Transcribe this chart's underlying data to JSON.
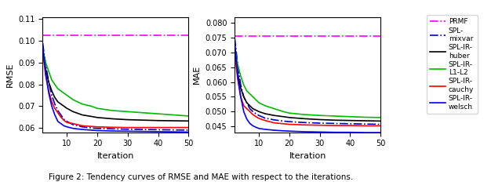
{
  "title": "Figure 2: Tendency curves of RMSE and MAE with respect to the iterations.",
  "iterations": [
    2,
    3,
    4,
    5,
    6,
    7,
    8,
    9,
    10,
    12,
    15,
    18,
    20,
    25,
    30,
    35,
    40,
    45,
    50
  ],
  "rmse_ylim": [
    0.058,
    0.111
  ],
  "rmse_yticks": [
    0.06,
    0.07,
    0.08,
    0.09,
    0.1,
    0.11
  ],
  "mae_ylim": [
    0.043,
    0.082
  ],
  "mae_yticks": [
    0.045,
    0.05,
    0.055,
    0.06,
    0.065,
    0.07,
    0.075,
    0.08
  ],
  "xlim": [
    2,
    50
  ],
  "xticks": [
    10,
    20,
    30,
    40,
    50
  ],
  "legend_labels": [
    "PRMF",
    "SPL-\nmixvar",
    "SPL-IR-\nhuber",
    "SPL-IR-\nL1-L2",
    "SPL-IR-\ncauchy",
    "SPL-IR-\nwelsch"
  ],
  "colors": {
    "PRMF": "#ff00ff",
    "SPL-mixvar": "#0000cd",
    "SPL-IR-huber": "#000000",
    "SPL-IR-L1-L2": "#00bb00",
    "SPL-IR-cauchy": "#ff0000",
    "SPL-IR-welsch": "#0000ff"
  },
  "linestyles": {
    "PRMF": "-.",
    "SPL-mixvar": "-.",
    "SPL-IR-huber": "-",
    "SPL-IR-L1-L2": "-",
    "SPL-IR-cauchy": "-",
    "SPL-IR-welsch": "-"
  },
  "rmse": {
    "PRMF": [
      0.1025,
      0.1025,
      0.1025,
      0.1025,
      0.1025,
      0.1025,
      0.1025,
      0.1025,
      0.1025,
      0.1025,
      0.1025,
      0.1025,
      0.1025,
      0.1025,
      0.1025,
      0.1025,
      0.1025,
      0.1025,
      0.1025
    ],
    "SPL-mixvar": [
      0.099,
      0.089,
      0.081,
      0.075,
      0.071,
      0.068,
      0.066,
      0.064,
      0.063,
      0.0615,
      0.0605,
      0.06,
      0.0598,
      0.0596,
      0.0594,
      0.0593,
      0.0592,
      0.0591,
      0.059
    ],
    "SPL-IR-huber": [
      0.096,
      0.087,
      0.081,
      0.077,
      0.074,
      0.072,
      0.071,
      0.07,
      0.069,
      0.0675,
      0.066,
      0.0653,
      0.0648,
      0.0642,
      0.0638,
      0.0636,
      0.0634,
      0.0633,
      0.0632
    ],
    "SPL-IR-L1-L2": [
      0.096,
      0.09,
      0.086,
      0.082,
      0.08,
      0.078,
      0.077,
      0.076,
      0.075,
      0.073,
      0.071,
      0.07,
      0.069,
      0.068,
      0.0675,
      0.067,
      0.0665,
      0.066,
      0.0655
    ],
    "SPL-IR-cauchy": [
      0.095,
      0.084,
      0.077,
      0.072,
      0.069,
      0.067,
      0.065,
      0.0635,
      0.0625,
      0.062,
      0.061,
      0.0607,
      0.0605,
      0.0603,
      0.0602,
      0.0602,
      0.0602,
      0.0602,
      0.0602
    ],
    "SPL-IR-welsch": [
      0.098,
      0.085,
      0.076,
      0.07,
      0.066,
      0.063,
      0.062,
      0.061,
      0.0605,
      0.0598,
      0.0593,
      0.059,
      0.0588,
      0.0586,
      0.0585,
      0.0584,
      0.0583,
      0.0582,
      0.0581
    ]
  },
  "mae": {
    "PRMF": [
      0.0755,
      0.0755,
      0.0755,
      0.0755,
      0.0755,
      0.0755,
      0.0755,
      0.0755,
      0.0755,
      0.0755,
      0.0755,
      0.0755,
      0.0755,
      0.0755,
      0.0755,
      0.0755,
      0.0755,
      0.0755,
      0.0755
    ],
    "SPL-mixvar": [
      0.075,
      0.066,
      0.059,
      0.055,
      0.053,
      0.051,
      0.05,
      0.0493,
      0.0487,
      0.0478,
      0.0472,
      0.0468,
      0.0466,
      0.0463,
      0.0461,
      0.046,
      0.0459,
      0.0458,
      0.0457
    ],
    "SPL-IR-huber": [
      0.072,
      0.063,
      0.058,
      0.055,
      0.053,
      0.052,
      0.051,
      0.0505,
      0.05,
      0.0493,
      0.0487,
      0.0483,
      0.048,
      0.0476,
      0.0473,
      0.0471,
      0.047,
      0.0469,
      0.0468
    ],
    "SPL-IR-L1-L2": [
      0.072,
      0.066,
      0.062,
      0.059,
      0.057,
      0.056,
      0.055,
      0.054,
      0.053,
      0.052,
      0.051,
      0.05,
      0.0495,
      0.049,
      0.0487,
      0.0485,
      0.0483,
      0.0481,
      0.048
    ],
    "SPL-IR-cauchy": [
      0.07,
      0.061,
      0.055,
      0.052,
      0.051,
      0.05,
      0.049,
      0.0483,
      0.0477,
      0.047,
      0.0462,
      0.0459,
      0.0457,
      0.0455,
      0.0454,
      0.0453,
      0.0453,
      0.0452,
      0.0452
    ],
    "SPL-IR-welsch": [
      0.074,
      0.062,
      0.055,
      0.05,
      0.0475,
      0.046,
      0.0452,
      0.0447,
      0.0443,
      0.044,
      0.0437,
      0.0435,
      0.0434,
      0.0432,
      0.0431,
      0.043,
      0.043,
      0.0429,
      0.0429
    ]
  }
}
